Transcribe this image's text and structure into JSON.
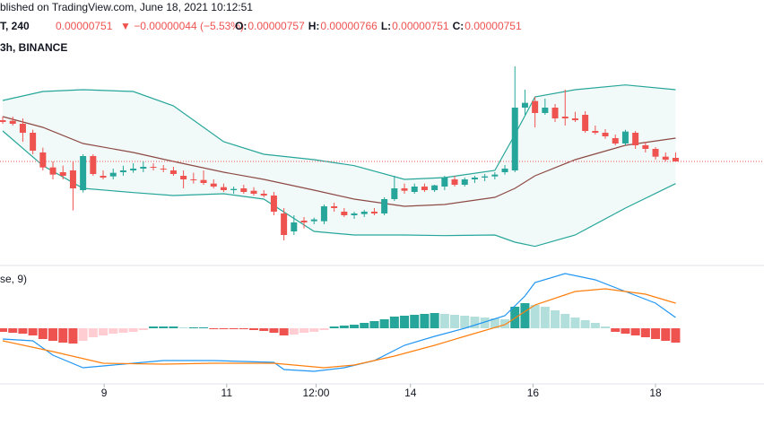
{
  "header": {
    "published": "blished on TradingView.com, June 18, 2021 10:12:51",
    "symbol": "T, 240",
    "price": "0.00000751",
    "change": "▼ −0.00000044 (−5.53%)",
    "ohlc": [
      {
        "label": "O:",
        "value": "0.00000757"
      },
      {
        "label": "H:",
        "value": "0.00000766"
      },
      {
        "label": "L:",
        "value": "0.00000751"
      },
      {
        "label": "C:",
        "value": "0.00000751"
      }
    ],
    "interval": "3h, BINANCE",
    "indicator": "se, 9)"
  },
  "chart_data": [
    {
      "type": "candlestick",
      "up_color": "#26a69a",
      "down_color": "#ef5350",
      "xlim": [
        -0.27,
        75.8
      ],
      "ylim": [
        5.86e-06,
        9.31e-06
      ],
      "open": [
        8.2e-06,
        8.19e-06,
        8.14e-06,
        7.99e-06,
        7.66e-06,
        7.41e-06,
        7.33e-06,
        7.36e-06,
        7.03e-06,
        7.6e-06,
        7.27e-06,
        7.26e-06,
        7.33e-06,
        7.36e-06,
        7.39e-06,
        7.42e-06,
        7.39e-06,
        7.36e-06,
        7.27e-06,
        7.21e-06,
        7.2e-06,
        7.14e-06,
        7.08e-06,
        7.03e-06,
        7.06e-06,
        7.02e-06,
        6.97e-06,
        6.94e-06,
        6.64e-06,
        6.34e-06,
        6.52e-06,
        6.51e-06,
        6.51e-06,
        6.76e-06,
        6.67e-06,
        6.61e-06,
        6.63e-06,
        6.67e-06,
        6.64e-06,
        6.88e-06,
        7.06e-06,
        7e-06,
        7.09e-06,
        7.03e-06,
        7.09e-06,
        7.21e-06,
        7.12e-06,
        7.21e-06,
        7.24e-06,
        7.26e-06,
        7.33e-06,
        7.36e-06,
        8.41e-06,
        8.52e-06,
        8.32e-06,
        8.41e-06,
        8.26e-06,
        8.23e-06,
        8.29e-06,
        8.02e-06,
        7.99e-06,
        7.9e-06,
        7.81e-06,
        7.99e-06,
        7.78e-06,
        7.72e-06,
        7.59e-06,
        7.57e-06
      ],
      "high": [
        8.26e-06,
        8.26e-06,
        8.23e-06,
        8.04e-06,
        7.74e-06,
        7.51e-06,
        7.44e-06,
        7.51e-06,
        7.63e-06,
        7.63e-06,
        7.36e-06,
        7.39e-06,
        7.44e-06,
        7.48e-06,
        7.51e-06,
        7.48e-06,
        7.45e-06,
        7.42e-06,
        7.36e-06,
        7.32e-06,
        7.36e-06,
        7.21e-06,
        7.14e-06,
        7.09e-06,
        7.12e-06,
        7.08e-06,
        7.03e-06,
        7e-06,
        6.73e-06,
        6.61e-06,
        6.58e-06,
        6.57e-06,
        6.79e-06,
        6.82e-06,
        6.73e-06,
        6.67e-06,
        6.7e-06,
        6.73e-06,
        6.91e-06,
        7.27e-06,
        7.14e-06,
        7.14e-06,
        7.14e-06,
        7.12e-06,
        7.27e-06,
        7.27e-06,
        7.24e-06,
        7.27e-06,
        7.3e-06,
        7.33e-06,
        7.45e-06,
        9.1e-06,
        8.71e-06,
        8.59e-06,
        8.56e-06,
        8.47e-06,
        8.71e-06,
        8.34e-06,
        8.35e-06,
        8.11e-06,
        8.05e-06,
        7.96e-06,
        8.04e-06,
        8.02e-06,
        7.84e-06,
        7.75e-06,
        7.66e-06,
        7.66e-06
      ],
      "low": [
        8.14e-06,
        8.11e-06,
        7.84e-06,
        7.63e-06,
        7.36e-06,
        7.21e-06,
        7.21e-06,
        6.69e-06,
        6.99e-06,
        7.27e-06,
        7.21e-06,
        7.21e-06,
        7.27e-06,
        7.32e-06,
        7.33e-06,
        7.36e-06,
        7.33e-06,
        7.27e-06,
        7.06e-06,
        7.14e-06,
        7.12e-06,
        7.06e-06,
        7e-06,
        6.97e-06,
        6.97e-06,
        6.94e-06,
        6.91e-06,
        6.61e-06,
        6.19e-06,
        6.28e-06,
        6.39e-06,
        6.46e-06,
        6.46e-06,
        6.67e-06,
        6.58e-06,
        6.55e-06,
        6.58e-06,
        6.61e-06,
        6.61e-06,
        6.85e-06,
        6.97e-06,
        6.97e-06,
        7e-06,
        7e-06,
        7.03e-06,
        7.09e-06,
        7.09e-06,
        7.15e-06,
        7.18e-06,
        7.21e-06,
        7.29e-06,
        7.33e-06,
        8.29e-06,
        8.08e-06,
        8.29e-06,
        8.17e-06,
        8.11e-06,
        8.17e-06,
        7.99e-06,
        7.96e-06,
        7.89e-06,
        7.78e-06,
        7.78e-06,
        7.72e-06,
        7.66e-06,
        7.54e-06,
        7.51e-06,
        7.51e-06
      ],
      "close": [
        8.17e-06,
        8.14e-06,
        7.99e-06,
        7.69e-06,
        7.41e-06,
        7.29e-06,
        7.27e-06,
        7.06e-06,
        7.6e-06,
        7.3e-06,
        7.24e-06,
        7.32e-06,
        7.36e-06,
        7.39e-06,
        7.42e-06,
        7.41e-06,
        7.38e-06,
        7.3e-06,
        7.21e-06,
        7.2e-06,
        7.15e-06,
        7.09e-06,
        7.03e-06,
        7.05e-06,
        7e-06,
        6.97e-06,
        6.94e-06,
        6.67e-06,
        6.28e-06,
        6.49e-06,
        6.49e-06,
        6.54e-06,
        6.76e-06,
        6.73e-06,
        6.61e-06,
        6.64e-06,
        6.67e-06,
        6.64e-06,
        6.88e-06,
        7.06e-06,
        7.02e-06,
        7.09e-06,
        7.03e-06,
        7.11e-06,
        7.24e-06,
        7.12e-06,
        7.21e-06,
        7.24e-06,
        7.26e-06,
        7.29e-06,
        7.39e-06,
        8.41e-06,
        8.49e-06,
        8.32e-06,
        8.41e-06,
        8.23e-06,
        8.23e-06,
        8.2e-06,
        8.02e-06,
        7.99e-06,
        7.93e-06,
        7.81e-06,
        8.01e-06,
        7.78e-06,
        7.72e-06,
        7.59e-06,
        7.54e-06,
        7.51e-06
      ],
      "bands": {
        "fill": "#26a69a",
        "x": [
          0,
          4,
          8,
          13,
          17,
          22,
          26,
          31,
          35,
          40,
          44,
          49,
          51,
          53,
          57,
          62,
          67
        ],
        "series": [
          {
            "color": "#26a69a",
            "values": [
              8.53e-06,
              8.68e-06,
              8.71e-06,
              8.68e-06,
              8.44e-06,
              7.84e-06,
              7.63e-06,
              7.54e-06,
              7.44e-06,
              7.21e-06,
              7.24e-06,
              7.36e-06,
              7.96e-06,
              8.59e-06,
              8.71e-06,
              8.79e-06,
              8.71e-06
            ]
          },
          {
            "color": "#8d4a44",
            "values": [
              8.26e-06,
              8.08e-06,
              7.81e-06,
              7.66e-06,
              7.51e-06,
              7.33e-06,
              7.21e-06,
              7.03e-06,
              6.88e-06,
              6.76e-06,
              6.79e-06,
              6.91e-06,
              7.06e-06,
              7.27e-06,
              7.54e-06,
              7.78e-06,
              7.9e-06
            ]
          },
          {
            "color": "#26a69a",
            "values": [
              8.02e-06,
              7.44e-06,
              7.06e-06,
              6.99e-06,
              6.94e-06,
              6.97e-06,
              6.88e-06,
              6.34e-06,
              6.28e-06,
              6.28e-06,
              6.27e-06,
              6.28e-06,
              6.16e-06,
              6.09e-06,
              6.28e-06,
              6.73e-06,
              7.14e-06
            ]
          }
        ]
      }
    },
    {
      "type": "macd",
      "xlim": [
        -0.27,
        75.8
      ],
      "ylim": [
        -6e-08,
        6.6e-08
      ],
      "colors": {
        "up_grow": "#26a69a",
        "up_fall": "#b2dfdb",
        "down_fall": "#ef5350",
        "down_rise": "#ffcdd2"
      },
      "histogram": [
        -4e-09,
        -5e-09,
        -6e-09,
        -8e-09,
        -1.2e-08,
        -1.4e-08,
        -1.6e-08,
        -1.7e-08,
        -1.4e-08,
        -1e-08,
        -8e-09,
        -6e-09,
        -5e-09,
        -4e-09,
        -2e-09,
        2e-09,
        2e-09,
        2e-09,
        1e-09,
        1e-09,
        1e-09,
        -1e-09,
        -1e-09,
        -1e-09,
        -1e-09,
        -2e-09,
        -3e-09,
        -5e-09,
        -8e-09,
        -7e-09,
        -5e-09,
        -4e-09,
        -2e-09,
        2e-09,
        3e-09,
        4e-09,
        6e-09,
        8e-09,
        1e-08,
        1.3e-08,
        1.4e-08,
        1.5e-08,
        1.6e-08,
        1.7e-08,
        1.6e-08,
        1.5e-08,
        1.4e-08,
        1.3e-08,
        1.2e-08,
        1.1e-08,
        1e-08,
        2.4e-08,
        2.8e-08,
        2.6e-08,
        2.4e-08,
        2e-08,
        1.6e-08,
        1.2e-08,
        9e-09,
        6e-09,
        2e-09,
        -4e-09,
        -6e-09,
        -8e-09,
        -1e-08,
        -1.2e-08,
        -1.4e-08,
        -1.6e-08
      ],
      "series": [
        {
          "color": "#2196f3",
          "x": [
            0,
            3,
            5,
            8,
            10,
            13,
            16,
            21,
            27,
            28,
            31,
            34,
            37,
            40,
            43,
            46,
            50,
            52,
            53,
            56,
            59,
            62,
            65,
            67
          ],
          "values": [
            -1.2e-08,
            -1.4e-08,
            -3e-08,
            -4.4e-08,
            -4.2e-08,
            -3.9e-08,
            -3.6e-08,
            -3.6e-08,
            -3.8e-08,
            -4.6e-08,
            -4.8e-08,
            -4.4e-08,
            -3.6e-08,
            -1.9e-08,
            -9e-09,
            0,
            1.4e-08,
            3.6e-08,
            5.1e-08,
            6.1e-08,
            5.4e-08,
            4.1e-08,
            2.8e-08,
            1.2e-08
          ]
        },
        {
          "color": "#ff7f0e",
          "x": [
            0,
            5,
            10,
            16,
            21,
            27,
            32,
            35,
            39,
            43,
            46,
            50,
            53,
            57,
            60,
            64,
            67
          ],
          "values": [
            -1.4e-08,
            -2.6e-08,
            -3.9e-08,
            -4e-08,
            -3.9e-08,
            -3.9e-08,
            -4.4e-08,
            -4.1e-08,
            -3.1e-08,
            -1.9e-08,
            -9e-09,
            4e-09,
            2.6e-08,
            4.1e-08,
            4.4e-08,
            3.8e-08,
            2.8e-08
          ]
        }
      ],
      "xticks": [
        {
          "value": 10.1,
          "label": "9"
        },
        {
          "value": 22.3,
          "label": "11"
        },
        {
          "value": 31.2,
          "label": "12:00"
        },
        {
          "value": 40.6,
          "label": "14"
        },
        {
          "value": 52.8,
          "label": "16"
        },
        {
          "value": 65,
          "label": "18"
        }
      ]
    }
  ]
}
